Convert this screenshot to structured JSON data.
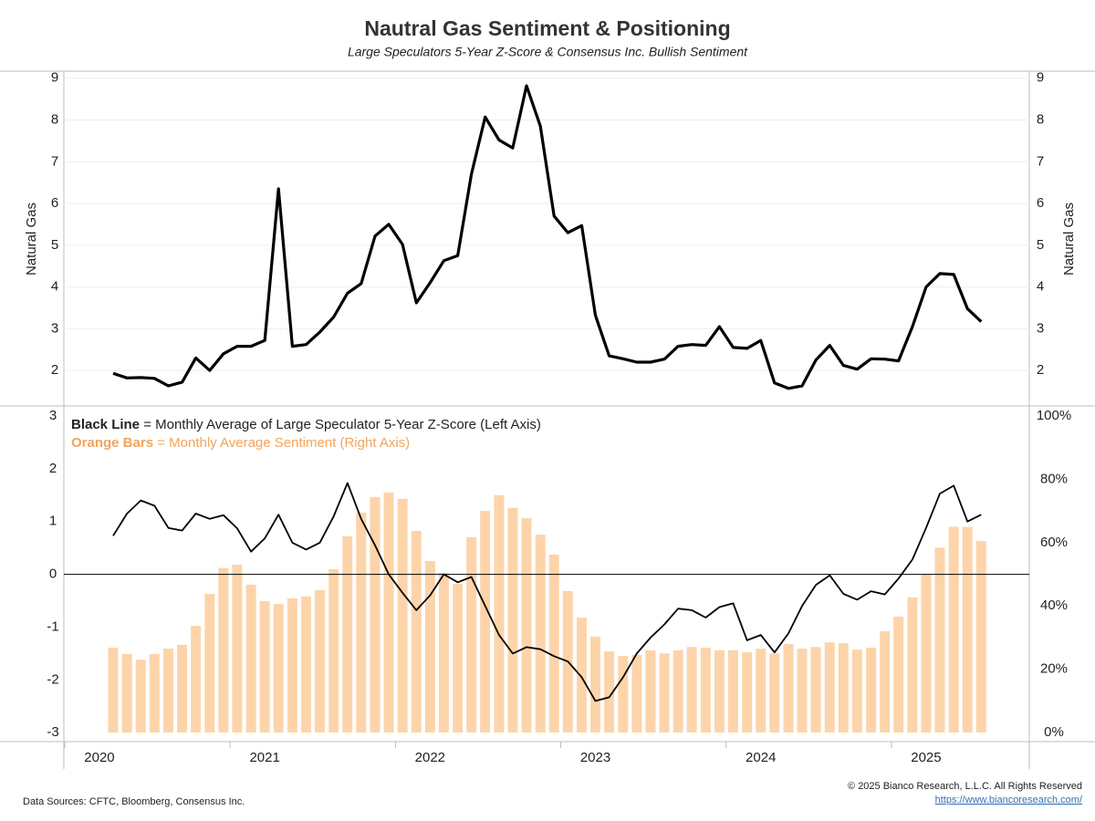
{
  "chart_data": [
    {
      "type": "line",
      "title": "Nautral Gas Sentiment & Positioning",
      "subtitle": "Large Speculators 5-Year Z-Score & Consensus Inc. Bullish Sentiment",
      "y_label": "Natural Gas",
      "x": [
        2020.083,
        2020.167,
        2020.25,
        2020.333,
        2020.417,
        2020.5,
        2020.583,
        2020.667,
        2020.75,
        2020.833,
        2020.917,
        2021,
        2021.083,
        2021.167,
        2021.25,
        2021.333,
        2021.417,
        2021.5,
        2021.583,
        2021.667,
        2021.75,
        2021.833,
        2021.917,
        2022,
        2022.083,
        2022.167,
        2022.25,
        2022.333,
        2022.417,
        2022.5,
        2022.583,
        2022.667,
        2022.75,
        2022.833,
        2022.917,
        2023,
        2023.083,
        2023.167,
        2023.25,
        2023.333,
        2023.417,
        2023.5,
        2023.583,
        2023.667,
        2023.75,
        2023.833,
        2023.917,
        2024,
        2024.083,
        2024.167,
        2024.25,
        2024.333,
        2024.417,
        2024.5,
        2024.583,
        2024.667,
        2024.75,
        2024.833,
        2024.917,
        2025,
        2025.083,
        2025.167,
        2025.25,
        2025.333
      ],
      "series": [
        {
          "color": "#000000",
          "values": [
            1.93,
            1.82,
            1.83,
            1.81,
            1.63,
            1.72,
            2.3,
            2.0,
            2.4,
            2.58,
            2.58,
            2.72,
            6.35,
            2.58,
            2.62,
            2.92,
            3.28,
            3.85,
            4.08,
            5.22,
            5.5,
            5.02,
            3.62,
            4.1,
            4.63,
            4.75,
            6.7,
            8.07,
            7.52,
            7.33,
            8.82,
            7.85,
            5.7,
            5.3,
            5.47,
            3.32,
            2.35,
            2.28,
            2.2,
            2.2,
            2.27,
            2.58,
            2.62,
            2.6,
            3.05,
            2.55,
            2.53,
            2.72,
            1.7,
            1.57,
            1.63,
            2.25,
            2.6,
            2.12,
            2.03,
            2.28,
            2.27,
            2.23,
            3.05,
            4.0,
            4.32,
            4.3,
            3.48,
            3.17
          ]
        }
      ],
      "ylim": [
        1.15,
        9.17
      ],
      "yticks": [
        2,
        3,
        4,
        5,
        6,
        7,
        8,
        9
      ],
      "grid": true
    },
    {
      "type": "bar_line",
      "x": [
        2020.083,
        2020.167,
        2020.25,
        2020.333,
        2020.417,
        2020.5,
        2020.583,
        2020.667,
        2020.75,
        2020.833,
        2020.917,
        2021,
        2021.083,
        2021.167,
        2021.25,
        2021.333,
        2021.417,
        2021.5,
        2021.583,
        2021.667,
        2021.75,
        2021.833,
        2021.917,
        2022,
        2022.083,
        2022.167,
        2022.25,
        2022.333,
        2022.417,
        2022.5,
        2022.583,
        2022.667,
        2022.75,
        2022.833,
        2022.917,
        2023,
        2023.083,
        2023.167,
        2023.25,
        2023.333,
        2023.417,
        2023.5,
        2023.583,
        2023.667,
        2023.75,
        2023.833,
        2023.917,
        2024,
        2024.083,
        2024.167,
        2024.25,
        2024.333,
        2024.417,
        2024.5,
        2024.583,
        2024.667,
        2024.75,
        2024.833,
        2024.917,
        2025,
        2025.083,
        2025.167,
        2025.25,
        2025.333
      ],
      "series": [
        {
          "name": "Black Line",
          "description": " = Monthly Average of Large Speculator 5-Year Z-Score (Left Axis)",
          "kind": "line",
          "color": "#000000",
          "values": [
            0.73,
            1.15,
            1.4,
            1.3,
            0.88,
            0.83,
            1.15,
            1.05,
            1.12,
            0.87,
            0.43,
            0.68,
            1.13,
            0.6,
            0.47,
            0.6,
            1.1,
            1.73,
            1.05,
            0.55,
            0.0,
            -0.35,
            -0.68,
            -0.4,
            0.0,
            -0.15,
            -0.05,
            -0.6,
            -1.15,
            -1.5,
            -1.38,
            -1.42,
            -1.55,
            -1.65,
            -1.95,
            -2.4,
            -2.33,
            -1.95,
            -1.5,
            -1.2,
            -0.95,
            -0.65,
            -0.68,
            -0.82,
            -0.62,
            -0.55,
            -1.25,
            -1.15,
            -1.48,
            -1.12,
            -0.6,
            -0.2,
            -0.02,
            -0.37,
            -0.48,
            -0.32,
            -0.38,
            -0.08,
            0.28,
            0.88,
            1.53,
            1.68,
            1.0,
            1.13
          ]
        },
        {
          "name": "Orange Bars",
          "description": " = Monthly Average Sentiment (Right Axis)",
          "kind": "bar",
          "axis": "y2",
          "color": "#fdd4aa",
          "legend_color": "#f2a45c",
          "values": [
            26.8,
            24.8,
            23,
            24.8,
            26.5,
            27.7,
            33.7,
            43.8,
            52,
            53,
            46.7,
            41.5,
            40.6,
            42.4,
            43,
            45,
            51.6,
            62,
            69.5,
            74.4,
            75.8,
            73.8,
            63.7,
            54.2,
            50.4,
            47,
            61.7,
            70,
            75,
            71,
            67.7,
            62.5,
            56.2,
            44.7,
            36.3,
            30.3,
            25.6,
            24.2,
            24.5,
            26,
            25,
            26,
            27,
            26.8,
            26,
            26,
            25.4,
            26.5,
            25,
            28,
            26.5,
            27,
            28.5,
            28.2,
            26.2,
            26.8,
            32,
            36.6,
            42.7,
            50,
            58.4,
            65,
            65,
            60.5
          ]
        }
      ],
      "xlim": [
        2019.785,
        2025.624
      ],
      "xticks": [
        2020,
        2021,
        2022,
        2023,
        2024,
        2025
      ],
      "ylim": [
        -3.17,
        3.19
      ],
      "yticks": [
        -3,
        -2,
        -1,
        0,
        1,
        2,
        3
      ],
      "y2lim": [
        -2.88,
        103.17
      ],
      "y2ticks": [
        {
          "value": 0,
          "label": "0%"
        },
        {
          "value": 20,
          "label": "20%"
        },
        {
          "value": 40,
          "label": "40%"
        },
        {
          "value": 60,
          "label": "60%"
        },
        {
          "value": 80,
          "label": "80%"
        },
        {
          "value": 100,
          "label": "100%"
        }
      ]
    }
  ],
  "footer": {
    "sources": "Data Sources: CFTC, Bloomberg, Consensus Inc.",
    "copyright": "© 2025 Bianco Research, L.L.C. All Rights Reserved",
    "url": "https://www.biancoresearch.com/"
  }
}
